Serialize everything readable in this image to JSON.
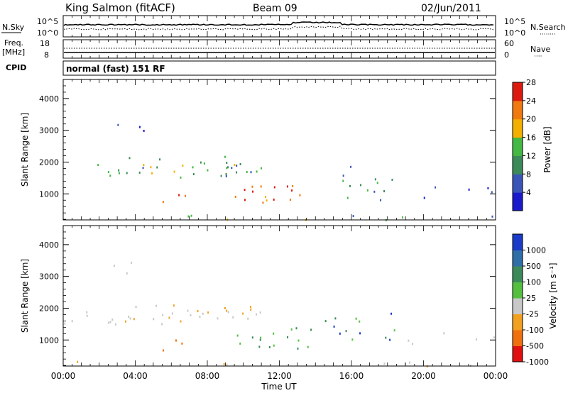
{
  "header": {
    "station": "King Salmon (fitACF)",
    "beam": "Beam 09",
    "date": "02/Jun/2011"
  },
  "noise_panel": {
    "left_label": "N.Sky",
    "right_label": "N.Search",
    "right_dots": "········",
    "tick_top": "10^5",
    "tick_bottom": "10^0"
  },
  "freq_panel": {
    "left_label_1": "Freq.",
    "left_label_2": "[MHz]",
    "right_label": "Nave",
    "right_dots": "····",
    "left_tick_top": "18",
    "left_tick_bottom": "8",
    "right_tick_top": "60",
    "right_tick_bottom": "0"
  },
  "cpid": {
    "label": "CPID",
    "value": "normal (fast) 151 RF"
  },
  "chart_data": [
    {
      "type": "heatmap",
      "title": "",
      "xlabel": "",
      "ylabel": "Slant Range [km]",
      "xlim": [
        "00:00",
        "24:00"
      ],
      "ylim": [
        180,
        4600
      ],
      "y_ticks": [
        "1000",
        "2000",
        "3000",
        "4000"
      ],
      "colorbar": {
        "label": "Power [dB]",
        "ticks": [
          "4",
          "8",
          "12",
          "16",
          "20",
          "24",
          "28"
        ],
        "colors": [
          "#1a1acc",
          "#3a55b8",
          "#3c8a5a",
          "#43b843",
          "#f2b000",
          "#f07a10",
          "#dc1a10"
        ]
      }
    },
    {
      "type": "heatmap",
      "title": "",
      "xlabel": "Time UT",
      "ylabel": "Slant Range [km]",
      "xlim": [
        "00:00",
        "24:00"
      ],
      "ylim": [
        180,
        4600
      ],
      "y_ticks": [
        "1000",
        "2000",
        "3000",
        "4000"
      ],
      "x_ticks": [
        "00:00",
        "04:00",
        "08:00",
        "12:00",
        "16:00",
        "20:00",
        "00:00"
      ],
      "colorbar": {
        "label": "Velocity [m s⁻¹]",
        "ticks": [
          "1000",
          "500",
          "100",
          "25",
          "-25",
          "-100",
          "-500",
          "-1000"
        ],
        "colors": [
          "#1a3cc8",
          "#2e6fa8",
          "#3c8a5a",
          "#55c040",
          "#c8c8c8",
          "#f2a020",
          "#f07010",
          "#e01010"
        ]
      }
    }
  ]
}
